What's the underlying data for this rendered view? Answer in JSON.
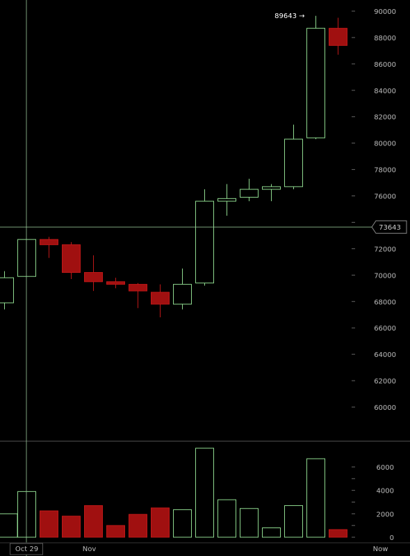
{
  "colors": {
    "background": "#000000",
    "up": "#8fd98f",
    "down": "#a01010",
    "downStroke": "#c01818",
    "axisText": "#bbbbbb",
    "grid": "#444444",
    "crosshair": "#9ac99a"
  },
  "chart_data": [
    {
      "type": "candlestick",
      "title": "",
      "ylim": [
        57000,
        90500
      ],
      "yticks": [
        60000,
        62000,
        64000,
        66000,
        68000,
        70000,
        72000,
        74000,
        76000,
        78000,
        80000,
        82000,
        84000,
        86000,
        88000,
        90000
      ],
      "yticks_labeled": [
        60000,
        62000,
        64000,
        66000,
        68000,
        70000,
        72000,
        76000,
        78000,
        80000,
        82000,
        84000,
        86000,
        88000,
        90000
      ],
      "candles": [
        {
          "open": 67900,
          "close": 69800,
          "high": 70300,
          "low": 67400
        },
        {
          "open": 69900,
          "close": 72700,
          "high": 72700,
          "low": 69900
        },
        {
          "open": 72700,
          "close": 72300,
          "high": 72900,
          "low": 71300
        },
        {
          "open": 72300,
          "close": 70200,
          "high": 72500,
          "low": 69700
        },
        {
          "open": 70200,
          "close": 69500,
          "high": 71500,
          "low": 68800
        },
        {
          "open": 69500,
          "close": 69300,
          "high": 69800,
          "low": 69000
        },
        {
          "open": 69300,
          "close": 68800,
          "high": 69400,
          "low": 67500
        },
        {
          "open": 68700,
          "close": 67800,
          "high": 69300,
          "low": 66800
        },
        {
          "open": 67800,
          "close": 69300,
          "high": 70500,
          "low": 67400
        },
        {
          "open": 69400,
          "close": 75600,
          "high": 76500,
          "low": 69200
        },
        {
          "open": 75600,
          "close": 75800,
          "high": 76900,
          "low": 74500
        },
        {
          "open": 75900,
          "close": 76500,
          "high": 77300,
          "low": 75600
        },
        {
          "open": 76500,
          "close": 76700,
          "high": 76900,
          "low": 75600
        },
        {
          "open": 76700,
          "close": 80300,
          "high": 81400,
          "low": 76500
        },
        {
          "open": 80400,
          "close": 88700,
          "high": 89643,
          "low": 80300
        },
        {
          "open": 88700,
          "close": 87400,
          "high": 89500,
          "low": 86700
        }
      ],
      "high_marker": {
        "label": "89643 →",
        "value": 89643
      },
      "crosshair": {
        "price_label": "73643",
        "value": 73643,
        "candle_index": 1
      },
      "x_labels": [
        {
          "label": "Oct 29",
          "candle_index": 1,
          "boxed": true
        },
        {
          "label": "Nov",
          "candle_index": 4,
          "boxed": false
        },
        {
          "label": "Now",
          "candle_index": 17,
          "boxed": false
        }
      ]
    },
    {
      "type": "bar",
      "title": "",
      "ylim": [
        0,
        7500
      ],
      "yticks": [
        0,
        2000,
        4000,
        6000
      ],
      "yticks_minor": [
        1000,
        3000,
        5000
      ],
      "values": [
        2000,
        3900,
        2250,
        1800,
        2700,
        1000,
        1950,
        2500,
        2350,
        7600,
        3200,
        2450,
        800,
        2700,
        6700,
        650
      ],
      "directions": [
        "up",
        "up",
        "down",
        "down",
        "down",
        "down",
        "down",
        "down",
        "up",
        "up",
        "up",
        "up",
        "up",
        "up",
        "up",
        "down"
      ]
    }
  ]
}
